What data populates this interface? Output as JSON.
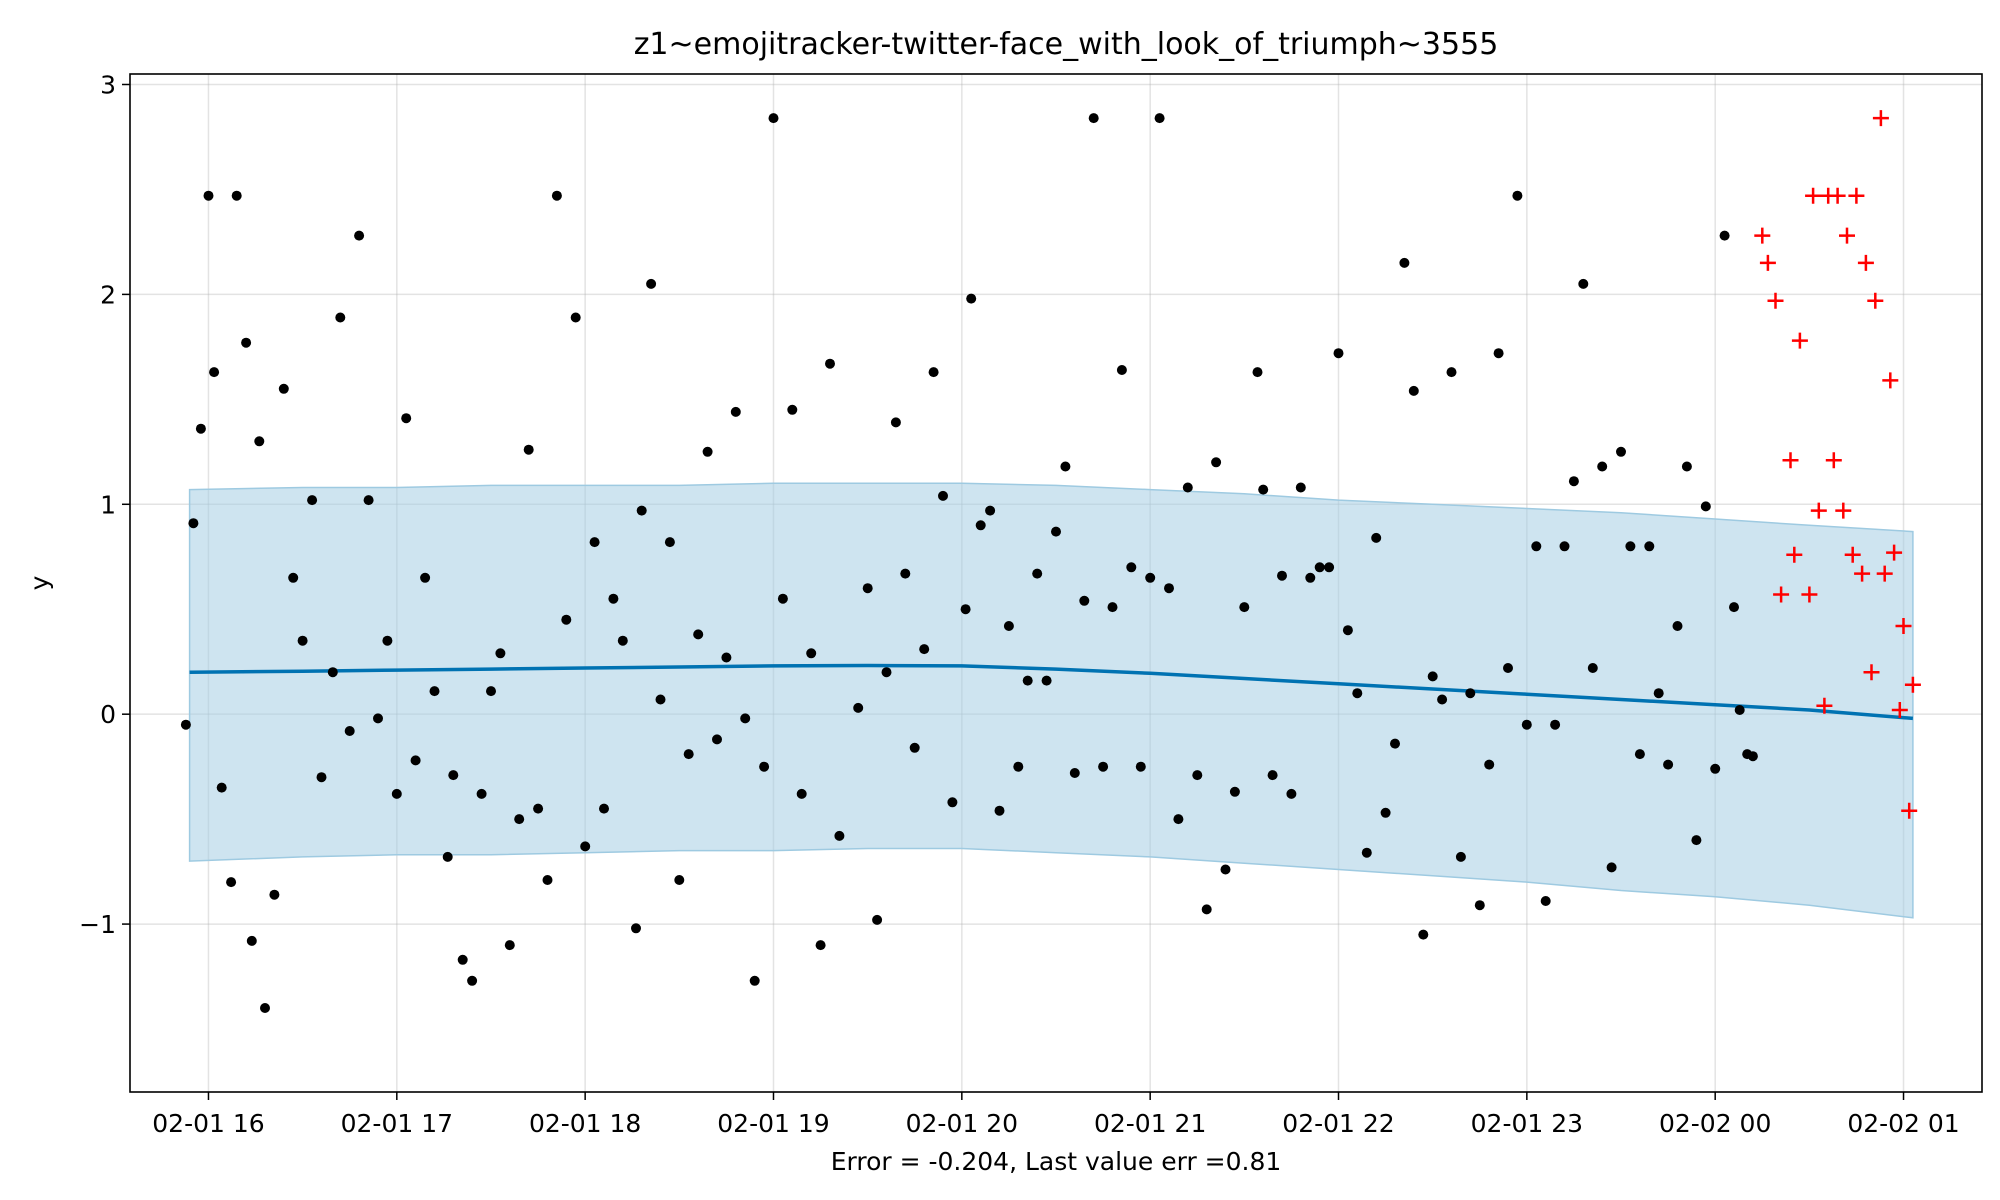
{
  "chart_data": {
    "type": "scatter",
    "title": "z1~emojitracker-twitter-face_with_look_of_triumph~3555",
    "xlabel": "Error = -0.204, Last value err =0.81",
    "ylabel": "y",
    "xlim": [
      "02-01 15:35",
      "02-02 01:25"
    ],
    "ylim": [
      -1.8,
      3.05
    ],
    "x_ticks": [
      "02-01 16",
      "02-01 17",
      "02-01 18",
      "02-01 19",
      "02-01 20",
      "02-01 21",
      "02-01 22",
      "02-01 23",
      "02-02 00",
      "02-02 01"
    ],
    "y_ticks": [
      "−1",
      "0",
      "1",
      "2",
      "3"
    ],
    "y_tick_values": [
      -1,
      0,
      1,
      2,
      3
    ],
    "grid": true,
    "x_unit": "hours after 02-01 00:00",
    "colors": {
      "points": "#000000",
      "forecast_line": "#0072b2",
      "band": "#a6cee3",
      "test_points": "#ff0000"
    },
    "series": [
      {
        "kind": "prediction_band",
        "x": [
          15.9,
          16.5,
          17.0,
          17.5,
          18.0,
          18.5,
          19.0,
          19.5,
          20.0,
          20.5,
          21.0,
          21.5,
          22.0,
          22.5,
          23.0,
          23.5,
          24.0,
          24.5,
          25.05
        ],
        "upper": [
          1.07,
          1.08,
          1.08,
          1.09,
          1.09,
          1.09,
          1.1,
          1.1,
          1.1,
          1.09,
          1.07,
          1.05,
          1.02,
          1.0,
          0.98,
          0.96,
          0.93,
          0.9,
          0.87
        ],
        "lower": [
          -0.7,
          -0.68,
          -0.67,
          -0.67,
          -0.66,
          -0.65,
          -0.65,
          -0.64,
          -0.64,
          -0.66,
          -0.68,
          -0.71,
          -0.74,
          -0.77,
          -0.8,
          -0.84,
          -0.87,
          -0.91,
          -0.97
        ]
      },
      {
        "kind": "forecast",
        "x": [
          15.9,
          16.5,
          17.0,
          17.5,
          18.0,
          18.5,
          19.0,
          19.5,
          20.0,
          20.5,
          21.0,
          21.5,
          22.0,
          22.5,
          23.0,
          23.5,
          24.0,
          24.5,
          25.05
        ],
        "y": [
          0.2,
          0.205,
          0.21,
          0.215,
          0.22,
          0.225,
          0.23,
          0.232,
          0.23,
          0.215,
          0.195,
          0.17,
          0.145,
          0.12,
          0.095,
          0.07,
          0.045,
          0.02,
          -0.02
        ]
      },
      {
        "kind": "observed",
        "x": [
          15.88,
          15.92,
          15.96,
          16.0,
          16.03,
          16.07,
          16.12,
          16.15,
          16.2,
          16.23,
          16.27,
          16.3,
          16.35,
          16.4,
          16.45,
          16.5,
          16.55,
          16.6,
          16.66,
          16.7,
          16.75,
          16.8,
          16.85,
          16.9,
          16.95,
          17.0,
          17.05,
          17.1,
          17.15,
          17.2,
          17.27,
          17.3,
          17.35,
          17.4,
          17.45,
          17.5,
          17.55,
          17.6,
          17.65,
          17.7,
          17.75,
          17.8,
          17.85,
          17.9,
          17.95,
          18.0,
          18.05,
          18.1,
          18.15,
          18.2,
          18.27,
          18.3,
          18.35,
          18.4,
          18.45,
          18.5,
          18.55,
          18.6,
          18.65,
          18.7,
          18.75,
          18.8,
          18.85,
          18.9,
          18.95,
          19.0,
          19.05,
          19.1,
          19.15,
          19.2,
          19.25,
          19.3,
          19.35,
          19.45,
          19.5,
          19.55,
          19.6,
          19.65,
          19.7,
          19.75,
          19.8,
          19.85,
          19.9,
          19.95,
          20.02,
          20.05,
          20.1,
          20.15,
          20.2,
          20.25,
          20.3,
          20.35,
          20.4,
          20.45,
          20.5,
          20.55,
          20.6,
          20.65,
          20.7,
          20.75,
          20.8,
          20.85,
          20.9,
          20.95,
          21.0,
          21.05,
          21.1,
          21.15,
          21.2,
          21.25,
          21.3,
          21.35,
          21.4,
          21.45,
          21.5,
          21.57,
          21.6,
          21.65,
          21.7,
          21.75,
          21.8,
          21.85,
          21.9,
          21.95,
          22.0,
          22.05,
          22.1,
          22.15,
          22.2,
          22.25,
          22.3,
          22.35,
          22.4,
          22.45,
          22.5,
          22.55,
          22.6,
          22.65,
          22.7,
          22.75,
          22.8,
          22.85,
          22.9,
          22.95,
          23.0,
          23.05,
          23.1,
          23.15,
          23.2,
          23.25,
          23.3,
          23.35,
          23.4,
          23.45,
          23.5,
          23.55,
          23.6,
          23.65,
          23.7,
          23.75,
          23.8,
          23.85,
          23.9,
          23.95,
          24.0,
          24.05,
          24.1,
          24.13,
          24.17,
          24.2
        ],
        "y": [
          -0.05,
          0.91,
          1.36,
          2.47,
          1.63,
          -0.35,
          -0.8,
          2.47,
          1.77,
          -1.08,
          1.3,
          -1.4,
          -0.86,
          1.55,
          0.65,
          0.35,
          1.02,
          -0.3,
          0.2,
          1.89,
          -0.08,
          2.28,
          1.02,
          -0.02,
          0.35,
          -0.38,
          1.41,
          -0.22,
          0.65,
          0.11,
          -0.68,
          -0.29,
          -1.17,
          -1.27,
          -0.38,
          0.11,
          0.29,
          -1.1,
          -0.5,
          1.26,
          -0.45,
          -0.79,
          2.47,
          0.45,
          1.89,
          -0.63,
          0.82,
          -0.45,
          0.55,
          0.35,
          -1.02,
          0.97,
          2.05,
          0.07,
          0.82,
          -0.79,
          -0.19,
          0.38,
          1.25,
          -0.12,
          0.27,
          1.44,
          -0.02,
          -1.27,
          -0.25,
          2.84,
          0.55,
          1.45,
          -0.38,
          0.29,
          -1.1,
          1.67,
          -0.58,
          0.03,
          0.6,
          -0.98,
          0.2,
          1.39,
          0.67,
          -0.16,
          0.31,
          1.63,
          1.04,
          -0.42,
          0.5,
          1.98,
          0.9,
          0.97,
          -0.46,
          0.42,
          -0.25,
          0.16,
          0.67,
          0.16,
          0.87,
          1.18,
          -0.28,
          0.54,
          2.84,
          -0.25,
          0.51,
          1.64,
          0.7,
          -0.25,
          0.65,
          2.84,
          0.6,
          -0.5,
          1.08,
          -0.29,
          -0.93,
          1.2,
          -0.74,
          -0.37,
          0.51,
          1.63,
          1.07,
          -0.29,
          0.66,
          -0.38,
          1.08,
          0.65,
          0.7,
          0.7,
          1.72,
          0.4,
          0.1,
          -0.66,
          0.84,
          -0.47,
          -0.14,
          2.15,
          1.54,
          -1.05,
          0.18,
          0.07,
          1.63,
          -0.68,
          0.1,
          -0.91,
          -0.24,
          1.72,
          0.22,
          2.47,
          -0.05,
          0.8,
          -0.89,
          -0.05,
          0.8,
          1.11,
          2.05,
          0.22,
          1.18,
          -0.73,
          1.25,
          0.8,
          -0.19,
          0.8,
          0.1,
          -0.24,
          0.42,
          1.18,
          -0.6,
          0.99,
          -0.26,
          2.28,
          0.51,
          0.02,
          -0.19,
          -0.2
        ],
        "marker": "dot"
      },
      {
        "kind": "test",
        "x": [
          24.25,
          24.28,
          24.32,
          24.35,
          24.4,
          24.42,
          24.45,
          24.5,
          24.52,
          24.55,
          24.58,
          24.6,
          24.63,
          24.65,
          24.68,
          24.7,
          24.73,
          24.75,
          24.78,
          24.8,
          24.83,
          24.85,
          24.88,
          24.9,
          24.93,
          24.95,
          24.98,
          25.0,
          25.03,
          25.05
        ],
        "y": [
          2.28,
          2.15,
          1.97,
          0.57,
          1.21,
          0.76,
          1.78,
          0.57,
          2.47,
          0.97,
          0.04,
          2.47,
          1.21,
          2.47,
          0.97,
          2.28,
          0.76,
          2.47,
          0.67,
          2.15,
          0.2,
          1.97,
          2.84,
          0.67,
          1.59,
          0.77,
          0.02,
          0.42,
          -0.46,
          0.14
        ],
        "marker": "plus"
      }
    ]
  }
}
